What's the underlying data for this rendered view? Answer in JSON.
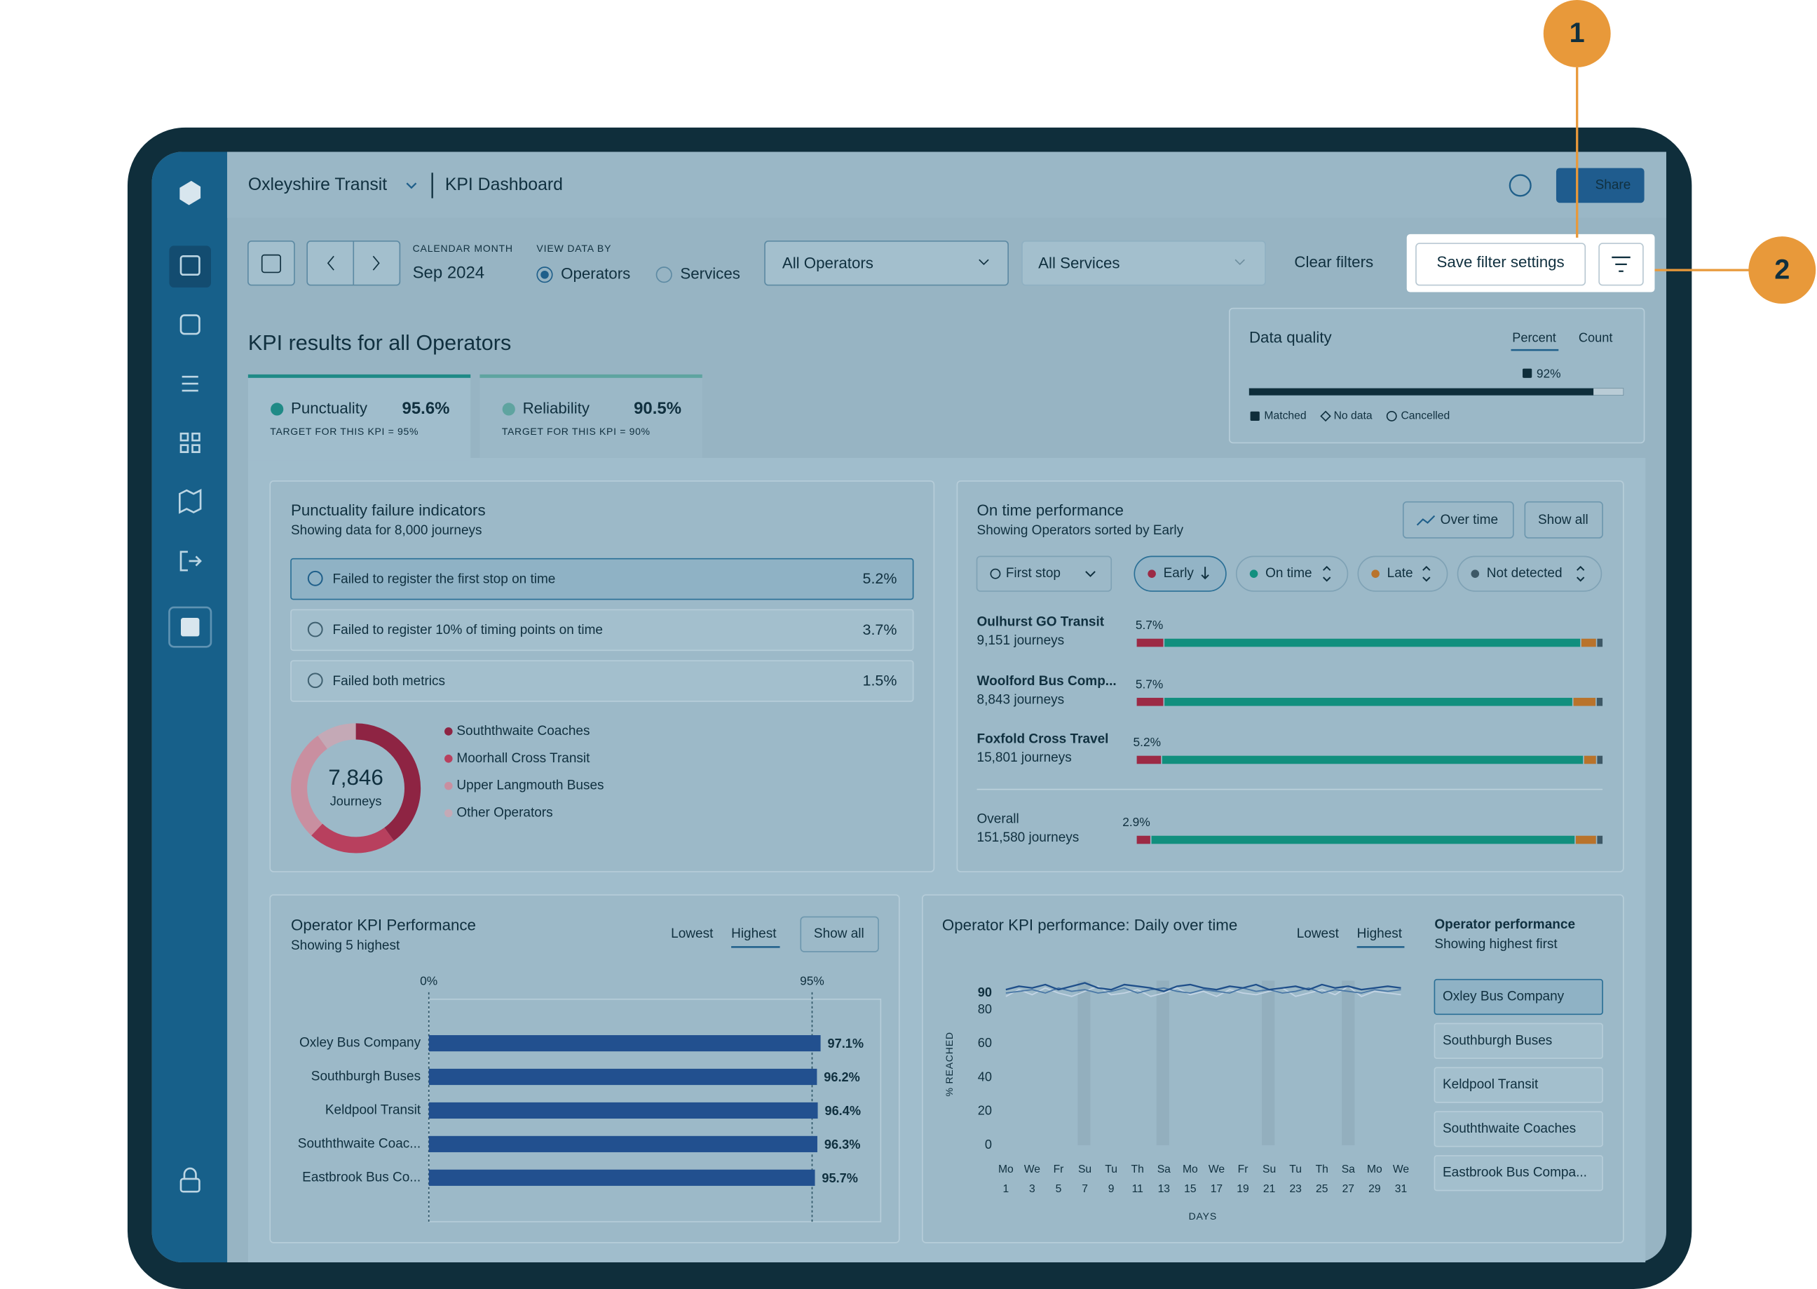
{
  "annotations": [
    "1",
    "2"
  ],
  "header": {
    "org": "Oxleyshire Transit",
    "page": "KPI Dashboard",
    "share": "Share"
  },
  "filters": {
    "calendar_label": "CALENDAR MONTH",
    "month": "Sep 2024",
    "view_label": "VIEW DATA BY",
    "options": [
      "Operators",
      "Services"
    ],
    "operators": "All Operators",
    "services": "All Services",
    "clear": "Clear filters",
    "save": "Save filter settings"
  },
  "kpi": {
    "title": "KPI results for all Operators",
    "tabs": [
      {
        "name": "Punctuality",
        "value": "95.6%",
        "target": "TARGET FOR THIS KPI = 95%"
      },
      {
        "name": "Reliability",
        "value": "90.5%",
        "target": "TARGET FOR THIS KPI = 90%"
      }
    ]
  },
  "data_quality": {
    "title": "Data quality",
    "toggles": [
      "Percent",
      "Count"
    ],
    "value": 92,
    "value_label": "92%",
    "legend": [
      "Matched",
      "No data",
      "Cancelled"
    ]
  },
  "failure": {
    "title": "Punctuality failure indicators",
    "subtitle": "Showing data for 8,000 journeys",
    "rows": [
      {
        "label": "Failed to register the first stop on time",
        "value": "5.2%"
      },
      {
        "label": "Failed to register 10% of timing points on time",
        "value": "3.7%"
      },
      {
        "label": "Failed both metrics",
        "value": "1.5%"
      }
    ],
    "donut": {
      "total": "7,846",
      "unit": "Journeys",
      "legend": [
        "Souththwaite Coaches",
        "Moorhall Cross Transit",
        "Upper Langmouth Buses",
        "Other Operators"
      ],
      "colors": [
        "#8e2443",
        "#b8405e",
        "#c98fa0",
        "#c4a9b6"
      ],
      "shares": [
        40,
        22,
        28,
        10
      ]
    }
  },
  "on_time": {
    "title": "On time performance",
    "subtitle": "Showing Operators sorted by Early",
    "buttons": [
      "Over time",
      "Show all"
    ],
    "filters": [
      "First stop",
      "Early",
      "On time",
      "Late",
      "Not detected"
    ],
    "segment_colors": [
      "#9c2a45",
      "#118f7e",
      "#b9732b",
      "#3d5866"
    ],
    "rows": [
      {
        "name": "Oulhurst GO Transit",
        "journeys": "9,151 journeys",
        "early_label": "5.7%",
        "segments": [
          5.7,
          89.5,
          3.4,
          1.4
        ]
      },
      {
        "name": "Woolford Bus Comp...",
        "journeys": "8,843 journeys",
        "early_label": "5.7%",
        "segments": [
          5.7,
          87.8,
          5.0,
          1.5
        ]
      },
      {
        "name": "Foxfold Cross Travel",
        "journeys": "15,801 journeys",
        "early_label": "5.2%",
        "segments": [
          5.2,
          90.6,
          2.8,
          1.4
        ]
      },
      {
        "name": "Overall",
        "journeys": "151,580 journeys",
        "early_label": "2.9%",
        "segments": [
          2.9,
          91.1,
          4.6,
          1.4
        ]
      }
    ]
  },
  "operator_kpi": {
    "type": "bar",
    "title": "Operator KPI Performance",
    "subtitle": "Showing 5 highest",
    "toggles": [
      "Lowest",
      "Highest"
    ],
    "button": "Show all",
    "categories": [
      "Oxley Bus Company",
      "Southburgh Buses",
      "Keldpool Transit",
      "Souththwaite Coac...",
      "Eastbrook Bus Co..."
    ],
    "values": [
      97.1,
      96.2,
      96.4,
      96.3,
      95.7
    ],
    "value_labels": [
      "97.1%",
      "96.2%",
      "96.4%",
      "96.3%",
      "95.7%"
    ],
    "color": "#22508f",
    "xlim": [
      0,
      112
    ],
    "xticks": [
      {
        "value": 0,
        "label": "0%"
      },
      {
        "value": 95,
        "label": "95%"
      }
    ]
  },
  "daily": {
    "type": "line",
    "title": "Operator KPI performance: Daily over time",
    "toggles": [
      "Lowest",
      "Highest"
    ],
    "ylabel": "% REACHED",
    "xlabel": "DAYS",
    "x": [
      1,
      2,
      3,
      4,
      5,
      6,
      7,
      8,
      9,
      10,
      11,
      12,
      13,
      14,
      15,
      16,
      17,
      18,
      19,
      20,
      21,
      22,
      23,
      24,
      25,
      26,
      27,
      28,
      29,
      30,
      31
    ],
    "xlim": [
      1,
      31
    ],
    "xticks": [
      1,
      3,
      5,
      7,
      9,
      11,
      13,
      15,
      17,
      19,
      21,
      23,
      25,
      27,
      29,
      31
    ],
    "xtick_days": [
      "Mo",
      "We",
      "Fr",
      "Su",
      "Tu",
      "Th",
      "Sa",
      "Mo",
      "We",
      "Fr",
      "Su",
      "Tu",
      "Th",
      "Sa",
      "Mo",
      "We"
    ],
    "ylim": [
      0,
      98
    ],
    "yticks": [
      0,
      20,
      40,
      60,
      80,
      90
    ],
    "series": [
      {
        "color": "#1f4f8a",
        "values": [
          92,
          94,
          93,
          95,
          92,
          94,
          96,
          93,
          92,
          95,
          94,
          93,
          91,
          94,
          95,
          93,
          92,
          94,
          93,
          95,
          92,
          93,
          94,
          92,
          95,
          93,
          94,
          92,
          93,
          94,
          93
        ]
      },
      {
        "color": "#4a78a6",
        "values": [
          90,
          91,
          92,
          90,
          93,
          91,
          92,
          90,
          91,
          93,
          90,
          92,
          93,
          91,
          90,
          92,
          91,
          90,
          93,
          91,
          92,
          90,
          91,
          93,
          90,
          92,
          91,
          90,
          92,
          91,
          92
        ]
      },
      {
        "color": "#c3d4e4",
        "values": [
          88,
          92,
          89,
          93,
          90,
          88,
          91,
          94,
          89,
          90,
          92,
          88,
          90,
          93,
          89,
          91,
          88,
          92,
          90,
          89,
          91,
          93,
          88,
          90,
          92,
          89,
          94,
          88,
          91,
          90,
          89
        ]
      }
    ],
    "list_title": "Operator performance",
    "list_subtitle": "Showing highest first",
    "list": [
      "Oxley Bus Company",
      "Southburgh Buses",
      "Keldpool Transit",
      "Souththwaite Coaches",
      "Eastbrook Bus Compa..."
    ]
  }
}
